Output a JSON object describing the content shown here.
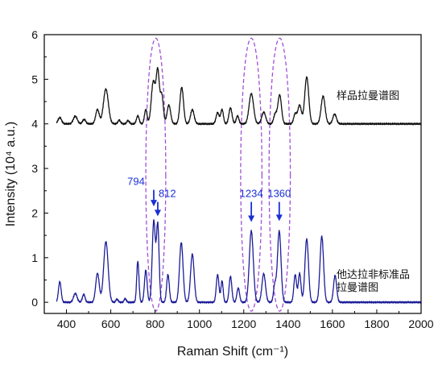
{
  "chart_data": {
    "type": "line",
    "xlabel": "Raman Shift (cm⁻¹)",
    "ylabel": "Intensity (10⁴ a.u.)",
    "xlim": [
      300,
      2000
    ],
    "ylim": [
      -0.25,
      6
    ],
    "x_ticks": [
      400,
      600,
      800,
      1000,
      1200,
      1400,
      1600,
      1800,
      2000
    ],
    "y_ticks": [
      0,
      1,
      2,
      3,
      4,
      5,
      6
    ],
    "colors": {
      "sample": "#111111",
      "standard": "#1c1c99",
      "ellipse": "#a050d8",
      "annotation": "#1a2fd6"
    },
    "series": [
      {
        "name": "样品拉曼谱图",
        "baseline": 4.0,
        "color": "#111111",
        "peaks": [
          [
            370,
            0.14,
            8
          ],
          [
            440,
            0.17,
            9
          ],
          [
            480,
            0.1,
            7
          ],
          [
            540,
            0.32,
            8
          ],
          [
            578,
            0.78,
            11
          ],
          [
            638,
            0.08,
            6
          ],
          [
            678,
            0.07,
            6
          ],
          [
            722,
            0.18,
            6
          ],
          [
            758,
            0.32,
            6
          ],
          [
            792,
            0.95,
            9
          ],
          [
            812,
            1.15,
            7
          ],
          [
            830,
            0.65,
            7
          ],
          [
            862,
            0.42,
            8
          ],
          [
            920,
            0.82,
            8
          ],
          [
            968,
            0.32,
            8
          ],
          [
            1082,
            0.25,
            7
          ],
          [
            1102,
            0.32,
            6
          ],
          [
            1140,
            0.36,
            7
          ],
          [
            1172,
            0.18,
            6
          ],
          [
            1234,
            0.68,
            10
          ],
          [
            1290,
            0.26,
            9
          ],
          [
            1342,
            0.22,
            7
          ],
          [
            1362,
            0.65,
            8
          ],
          [
            1432,
            0.22,
            7
          ],
          [
            1452,
            0.42,
            8
          ],
          [
            1484,
            1.05,
            9
          ],
          [
            1558,
            0.62,
            9
          ],
          [
            1610,
            0.22,
            8
          ]
        ]
      },
      {
        "name": "他达拉非标准品拉曼谱图",
        "baseline": 0.0,
        "color": "#1c1c99",
        "peaks": [
          [
            370,
            0.46,
            6
          ],
          [
            440,
            0.2,
            8
          ],
          [
            478,
            0.18,
            6
          ],
          [
            540,
            0.65,
            8
          ],
          [
            578,
            1.36,
            10
          ],
          [
            628,
            0.07,
            5
          ],
          [
            665,
            0.08,
            5
          ],
          [
            722,
            0.92,
            5
          ],
          [
            758,
            0.72,
            6
          ],
          [
            794,
            1.82,
            7
          ],
          [
            812,
            1.72,
            6
          ],
          [
            858,
            0.62,
            6
          ],
          [
            918,
            1.34,
            8
          ],
          [
            968,
            1.08,
            8
          ],
          [
            1082,
            0.62,
            6
          ],
          [
            1102,
            0.48,
            5
          ],
          [
            1140,
            0.58,
            6
          ],
          [
            1175,
            0.32,
            6
          ],
          [
            1234,
            1.6,
            9
          ],
          [
            1290,
            0.64,
            8
          ],
          [
            1340,
            0.38,
            6
          ],
          [
            1360,
            1.6,
            8
          ],
          [
            1432,
            0.62,
            6
          ],
          [
            1452,
            0.65,
            6
          ],
          [
            1484,
            1.42,
            8
          ],
          [
            1552,
            1.48,
            8
          ],
          [
            1612,
            0.6,
            7
          ]
        ]
      }
    ],
    "annotations": [
      {
        "label": "794",
        "x": 794,
        "y_tip": 2.15,
        "y_tail": 2.52
      },
      {
        "label": "812",
        "x": 812,
        "y_tip": 1.93,
        "y_tail": 2.25
      },
      {
        "label": "1234",
        "x": 1234,
        "y_tip": 1.8,
        "y_tail": 2.25
      },
      {
        "label": "1360",
        "x": 1360,
        "y_tip": 1.82,
        "y_tail": 2.25
      }
    ],
    "highlight_regions": [
      {
        "x_center": 803,
        "x_half_width": 45,
        "y_min": -0.2,
        "y_max": 5.92
      },
      {
        "x_center": 1234,
        "x_half_width": 48,
        "y_min": -0.2,
        "y_max": 5.92
      },
      {
        "x_center": 1362,
        "x_half_width": 48,
        "y_min": -0.2,
        "y_max": 5.92
      }
    ]
  },
  "labels": {
    "sample": "样品拉曼谱图",
    "standard_line1": "他达拉非标准品",
    "standard_line2": "拉曼谱图"
  }
}
